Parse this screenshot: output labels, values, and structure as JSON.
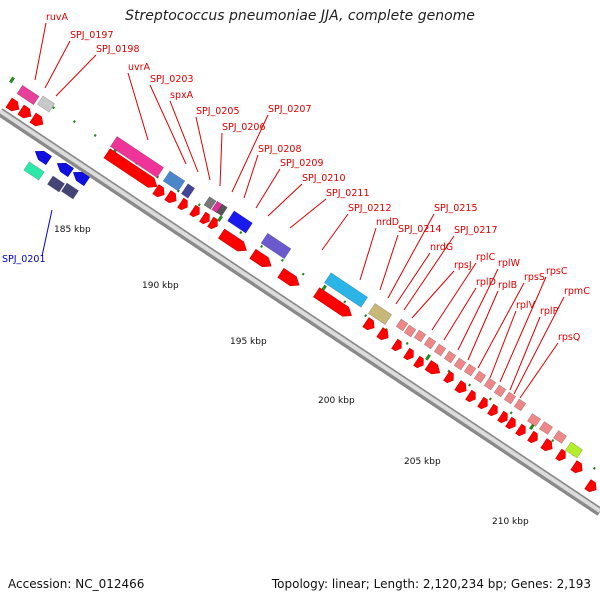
{
  "title": "Streptococcus pneumoniae JJA, complete genome",
  "footer": {
    "accession": "Accession: NC_012466",
    "summary": "Topology: linear; Length: 2,120,234 bp; Genes: 2,193"
  },
  "scale_labels": [
    "185 kbp",
    "190 kbp",
    "195 kbp",
    "200 kbp",
    "205 kbp",
    "210 kbp"
  ],
  "gene_labels": {
    "forward": [
      "ruvA",
      "SPJ_0197",
      "SPJ_0198",
      "uvrA",
      "SPJ_0203",
      "spxA",
      "SPJ_0205",
      "SPJ_0206",
      "SPJ_0207",
      "SPJ_0208",
      "SPJ_0209",
      "SPJ_0210",
      "SPJ_0211",
      "SPJ_0212",
      "nrdD",
      "SPJ_0214",
      "SPJ_0215",
      "nrdG",
      "SPJ_0217",
      "rpsJ",
      "rplC",
      "rplD",
      "rplW",
      "rplB",
      "rpsS",
      "rplV",
      "rpsC",
      "rplP",
      "rpmC",
      "rpsQ"
    ],
    "reverse": [
      "SPJ_0201"
    ]
  },
  "colors": {
    "forward_label": "#dd0000",
    "reverse_label": "#0000cc",
    "backbone": "#8c8c8c",
    "tick": "#228822"
  }
}
